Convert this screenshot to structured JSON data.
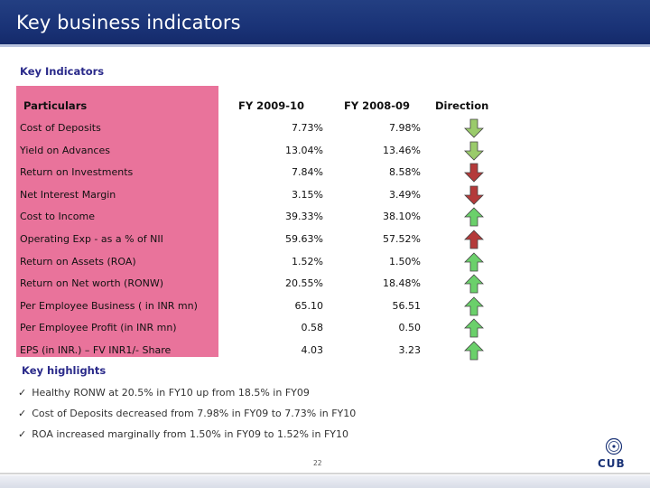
{
  "title": "Key business indicators",
  "section_title": "Key Indicators",
  "table": {
    "headers": [
      "Particulars",
      "FY 2009-10",
      "FY 2008-09",
      "Direction"
    ],
    "rows": [
      {
        "label": "Cost of Deposits",
        "fy10": "7.73%",
        "fy09": "7.98%",
        "direction": "down",
        "color": "#9acb6b"
      },
      {
        "label": "Yield on Advances",
        "fy10": "13.04%",
        "fy09": "13.46%",
        "direction": "down",
        "color": "#9acb6b"
      },
      {
        "label": "Return on Investments",
        "fy10": "7.84%",
        "fy09": "8.58%",
        "direction": "down",
        "color": "#b43a3a"
      },
      {
        "label": "Net Interest Margin",
        "fy10": "3.15%",
        "fy09": "3.49%",
        "direction": "down",
        "color": "#b43a3a"
      },
      {
        "label": "Cost to Income",
        "fy10": "39.33%",
        "fy09": "38.10%",
        "direction": "up",
        "color": "#6bd06b"
      },
      {
        "label": "Operating Exp - as a % of NII",
        "fy10": "59.63%",
        "fy09": "57.52%",
        "direction": "up",
        "color": "#b43a3a"
      },
      {
        "label": "Return on Assets (ROA)",
        "fy10": "1.52%",
        "fy09": "1.50%",
        "direction": "up",
        "color": "#6bd06b"
      },
      {
        "label": "Return on Net worth (RONW)",
        "fy10": "20.55%",
        "fy09": "18.48%",
        "direction": "up",
        "color": "#6bd06b"
      },
      {
        "label": "Per Employee Business ( in INR mn)",
        "fy10": "65.10",
        "fy09": "56.51",
        "direction": "up",
        "color": "#6bd06b"
      },
      {
        "label": "Per Employee Profit (in INR mn)",
        "fy10": "0.58",
        "fy09": "0.50",
        "direction": "up",
        "color": "#6bd06b"
      },
      {
        "label": "EPS (in INR.) – FV INR1/- Share",
        "fy10": "4.03",
        "fy09": "3.23",
        "direction": "up",
        "color": "#6bd06b"
      }
    ]
  },
  "highlights_title": "Key highlights",
  "highlights": [
    "Healthy RONW at 20.5% in FY10 up from 18.5% in FY09",
    "Cost of Deposits decreased from 7.98% in FY09 to 7.73% in FY10",
    "ROA increased marginally from 1.50% in FY09 to 1.52% in FY10"
  ],
  "page_number": "22",
  "logo_text": "CUB",
  "colors": {
    "title_bar": "#1a3377",
    "label_column": "#e9739b",
    "heading_text": "#2a2a8a"
  }
}
